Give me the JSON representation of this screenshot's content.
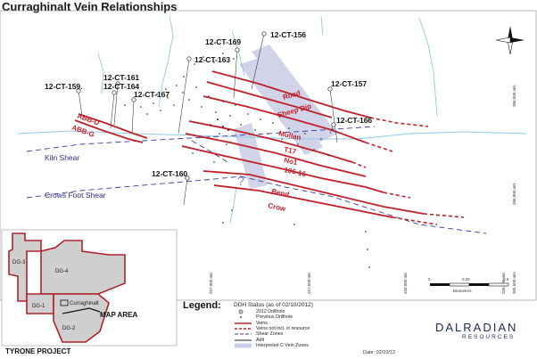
{
  "title": "Curraghinalt Vein Relationships",
  "drillholes": [
    "12-CT-156",
    "12-CT-169",
    "12-CT-163",
    "12-CT-161",
    "12-CT-164",
    "12-CT-159.",
    "12-CT-167",
    "12-CT-157",
    "12-CT-166",
    "12-CT-160"
  ],
  "veins": [
    "ABB-D",
    "ABB-G",
    "Road",
    "Sheep Dip",
    "Mullan",
    "T17",
    "No1",
    "106-16",
    "Bend",
    "Crow"
  ],
  "shear_zones": [
    "Kiln Shear",
    "Crows Foot Shear"
  ],
  "northings": [
    "386,500 mN",
    "386,000 mN",
    "385,500 mN"
  ],
  "eastings": [
    "257,000 mE",
    "257,500 mE",
    "258,000 mE",
    "258,500 mE"
  ],
  "scale": {
    "ticks": [
      "0",
      "0.25",
      "0.5"
    ],
    "unit": "kilometres"
  },
  "legend": {
    "title": "Legend:",
    "status": "DDH Status (as of 02/10/2012)",
    "items": [
      "2012 Drillhole",
      "Previous Drillhole",
      "Veins",
      "Veins not incl. in resource",
      "Shear Zones",
      "Adit",
      "Interpreted C Vein Zones"
    ]
  },
  "date": "Date: 02/10/12",
  "company": {
    "name": "DALRADIAN",
    "sub": "RESOURCES"
  },
  "inset": {
    "project": "TYRONE PROJECT",
    "blocks": [
      "DG-4",
      "DG-3",
      "DG-1",
      "DG-2"
    ],
    "place": "Curraghinalt",
    "map_area": "MAP AREA"
  },
  "colors": {
    "vein": "#c0202a",
    "shear": "#3a3aa0",
    "river": "#8fc9e8",
    "zone": "#c9cde6",
    "inset_fill": "#cfcfcf",
    "logo": "#1d2b4f"
  }
}
